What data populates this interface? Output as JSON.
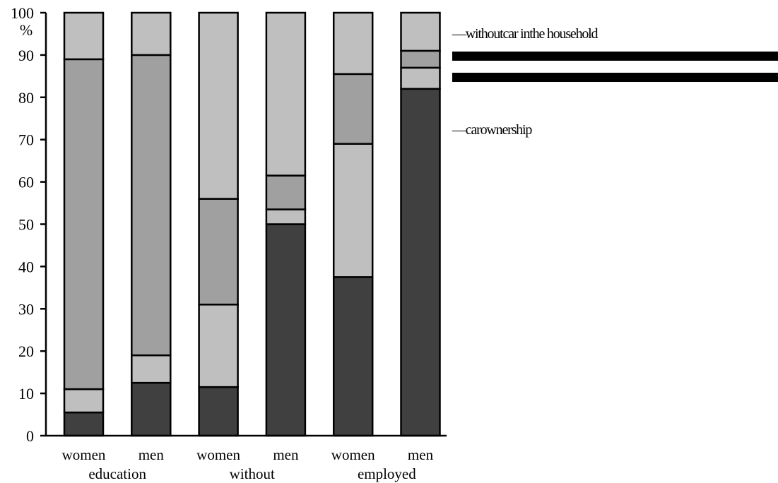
{
  "chart_data": {
    "type": "bar",
    "stacked": true,
    "percent_label": "%",
    "ylim": [
      0,
      100
    ],
    "yticks": [
      0,
      10,
      20,
      30,
      40,
      50,
      60,
      70,
      80,
      90,
      100
    ],
    "categories": [
      "women",
      "men",
      "women",
      "men",
      "women",
      "men"
    ],
    "groups": [
      "education",
      "without",
      "employed"
    ],
    "series": [
      {
        "color": "#404040",
        "values": [
          5.5,
          12.5,
          11.5,
          50,
          37.5,
          82
        ]
      },
      {
        "color": "#bfbfbf",
        "values": [
          5.5,
          6.5,
          19.5,
          3.5,
          31.5,
          5
        ]
      },
      {
        "color": "#a0a0a0",
        "values": [
          78,
          71,
          25,
          8,
          16.5,
          4
        ]
      },
      {
        "color": "#bfbfbf",
        "values": [
          11,
          10,
          44,
          38.5,
          14.5,
          9
        ]
      }
    ],
    "legend": [
      {
        "label": "—withoutcar inthe household"
      },
      {
        "label": "—carownership"
      }
    ],
    "grid": false
  }
}
